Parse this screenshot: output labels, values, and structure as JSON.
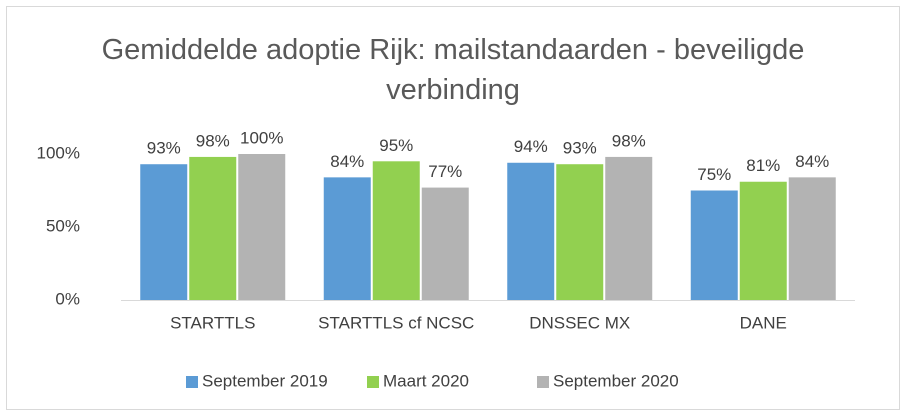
{
  "chart_data": {
    "type": "bar",
    "title": "Gemiddelde adoptie Rijk: mailstandaarden - beveiligde verbinding",
    "categories": [
      "STARTTLS",
      "STARTTLS cf NCSC",
      "DNSSEC MX",
      "DANE"
    ],
    "series": [
      {
        "name": "September 2019",
        "color": "#5b9bd5",
        "values": [
          93,
          84,
          94,
          75
        ],
        "value_labels": [
          "93%",
          "84%",
          "94%",
          "75%"
        ]
      },
      {
        "name": "Maart 2020",
        "color": "#92d050",
        "values": [
          98,
          95,
          93,
          81
        ],
        "value_labels": [
          "98%",
          "95%",
          "93%",
          "81%"
        ]
      },
      {
        "name": "September 2020",
        "color": "#b3b3b3",
        "values": [
          100,
          77,
          98,
          84
        ],
        "value_labels": [
          "100%",
          "77%",
          "98%",
          "84%"
        ]
      }
    ],
    "ylim": [
      0,
      100
    ],
    "yticks": [
      {
        "value": 0,
        "label": "0%"
      },
      {
        "value": 50,
        "label": "50%"
      },
      {
        "value": 100,
        "label": "100%"
      }
    ],
    "grid": false,
    "legend": "bottom"
  }
}
